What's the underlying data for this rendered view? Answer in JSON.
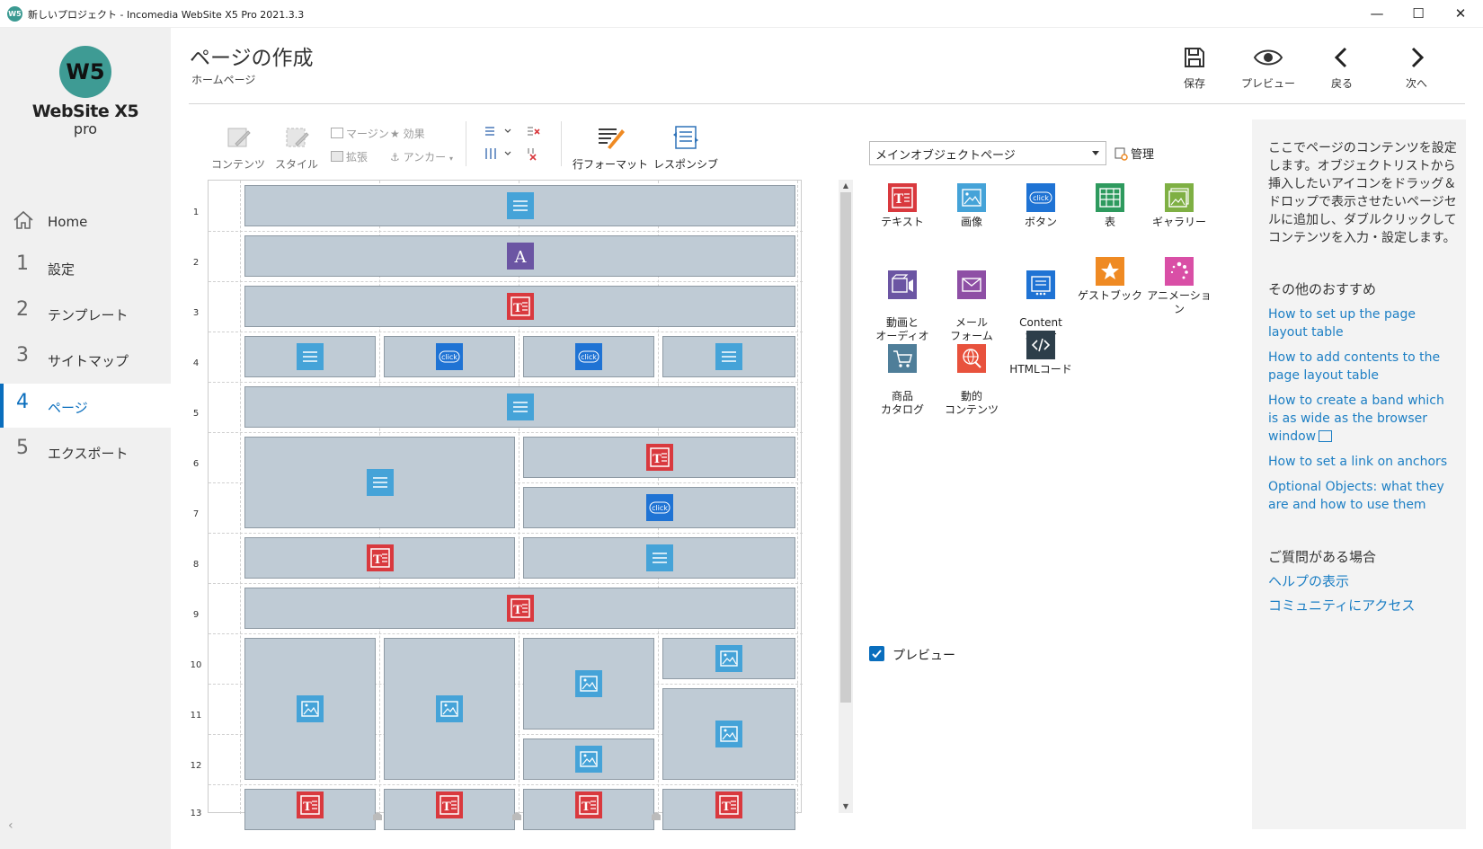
{
  "window": {
    "app_icon": "W5",
    "title": "新しいプロジェクト - Incomedia WebSite X5 Pro 2021.3.3",
    "controls": {
      "minimize": "—",
      "maximize": "☐",
      "close": "✕"
    }
  },
  "sidebar": {
    "logo_mark": "W5",
    "logo_name": "WebSite X5",
    "logo_edition": "pro",
    "items": [
      {
        "num": "",
        "label": "Home",
        "icon": "home-icon"
      },
      {
        "num": "1",
        "label": "設定"
      },
      {
        "num": "2",
        "label": "テンプレート"
      },
      {
        "num": "3",
        "label": "サイトマップ"
      },
      {
        "num": "4",
        "label": "ページ",
        "active": true
      },
      {
        "num": "5",
        "label": "エクスポート"
      }
    ],
    "collapse": "‹"
  },
  "header": {
    "title": "ページの作成",
    "subtitle": "ホームページ",
    "buttons": {
      "save": "保存",
      "preview": "プレビュー",
      "back": "戻る",
      "next": "次へ"
    }
  },
  "ribbon": {
    "content": "コンテンツ",
    "style": "スタイル",
    "margin": "マージン",
    "effect": "効果",
    "expand": "拡張",
    "anchor": "アンカー",
    "row_format": "行フォーマット",
    "responsive": "レスポンシブ"
  },
  "grid": {
    "row_numbers": [
      "1",
      "2",
      "3",
      "4",
      "5",
      "6",
      "7",
      "8",
      "9",
      "10",
      "11",
      "12",
      "13"
    ],
    "click_label": "click"
  },
  "objects": {
    "selector_value": "メインオブジェクトページ",
    "manage": "管理",
    "tiles": [
      {
        "id": "text",
        "label": "テキスト",
        "icon": "text-object-icon",
        "color": "#d9393e"
      },
      {
        "id": "image",
        "label": "画像",
        "icon": "image-object-icon",
        "color": "#45a3d8"
      },
      {
        "id": "button",
        "label": "ボタン",
        "icon": "button-object-icon",
        "color": "#1f73d4"
      },
      {
        "id": "table",
        "label": "表",
        "icon": "table-object-icon",
        "color": "#2e9a5e"
      },
      {
        "id": "gallery",
        "label": "ギャラリー",
        "icon": "gallery-object-icon",
        "color": "#7fb044"
      },
      {
        "id": "video",
        "label": "動画と\nオーディオ",
        "icon": "video-object-icon",
        "color": "#6b55a3"
      },
      {
        "id": "mailform",
        "label": "メール\nフォーム",
        "icon": "mail-form-object-icon",
        "color": "#8e4fa5"
      },
      {
        "id": "slider",
        "label": "Content\nSlider",
        "icon": "content-slider-object-icon",
        "color": "#1f73d4"
      },
      {
        "id": "guestbook",
        "label": "ゲストブック",
        "icon": "guestbook-object-icon",
        "color": "#ef8a23"
      },
      {
        "id": "animation",
        "label": "アニメーション",
        "icon": "animation-object-icon",
        "color": "#d94fa6"
      },
      {
        "id": "catalog",
        "label": "商品\nカタログ",
        "icon": "catalog-object-icon",
        "color": "#4f7e99"
      },
      {
        "id": "dynamic",
        "label": "動的\nコンテンツ",
        "icon": "dynamic-content-object-icon",
        "color": "#e8523d"
      },
      {
        "id": "html",
        "label": "HTMLコード",
        "icon": "html-code-object-icon",
        "color": "#2d3e4a"
      }
    ],
    "preview_label": "プレビュー"
  },
  "help": {
    "intro": "ここでページのコンテンツを設定します。オブジェクトリストから挿入したいアイコンをドラッグ＆ドロップで表示させたいページセルに追加し、ダブルクリックしてコンテンツを入力・設定します。",
    "recommend_heading": "その他のおすすめ",
    "links": [
      "How to set up the page layout table",
      "How to add contents to the page layout table",
      "How to create a band which is as wide as the browser window",
      "How to set a link on anchors",
      "Optional Objects: what they are and how to use them"
    ],
    "question_heading": "ご質問がある場合",
    "help_show": "ヘルプの表示",
    "community": "コミュニティにアクセス"
  },
  "colors": {
    "accent": "#0a6ebd",
    "link": "#1d7fc4",
    "cell": "#bfcbd5",
    "text_object": "#d9393e",
    "image_object": "#45a3d8",
    "button_object": "#1f73d4",
    "title_object": "#6b55a3"
  }
}
